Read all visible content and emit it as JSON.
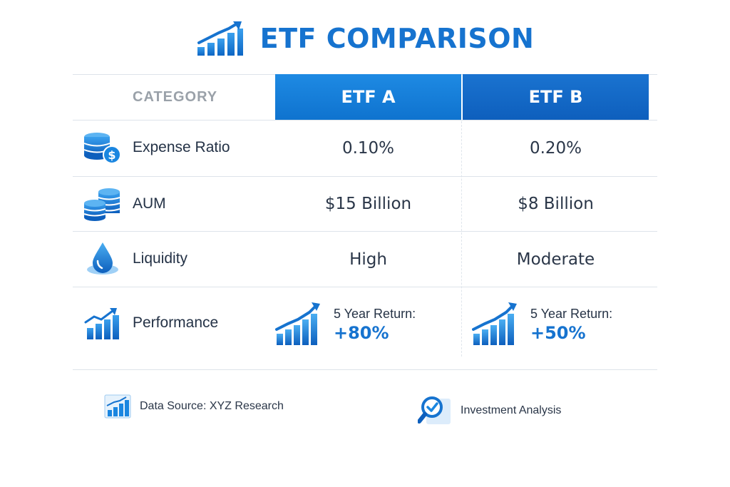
{
  "header": {
    "title": "ETF COMPARISON",
    "icon": "chart-growth-icon"
  },
  "table": {
    "category_header": "CATEGORY",
    "columns": [
      "ETF A",
      "ETF B"
    ],
    "rows": [
      {
        "label": "Expense Ratio",
        "icon": "coins-dollar-icon",
        "etf_a": "0.10%",
        "etf_b": "0.20%"
      },
      {
        "label": "AUM",
        "icon": "coin-stacks-icon",
        "etf_a": "$15 Billion",
        "etf_b": "$8 Billion"
      },
      {
        "label": "Liquidity",
        "icon": "water-drop-icon",
        "etf_a": "High",
        "etf_b": "Moderate"
      },
      {
        "label": "Performance",
        "icon": "bar-chart-icon",
        "etf_a": {
          "label": "5 Year Return:",
          "value": "+80%"
        },
        "etf_b": {
          "label": "5 Year Return:",
          "value": "+50%"
        }
      }
    ]
  },
  "footer": {
    "source": "Data Source: XYZ Research",
    "analysis": "Investment Analysis"
  },
  "colors": {
    "accent": "#1673cf",
    "header_a": "#1e8ae3",
    "header_b": "#0e5fbd",
    "divider": "#dde3ea"
  }
}
